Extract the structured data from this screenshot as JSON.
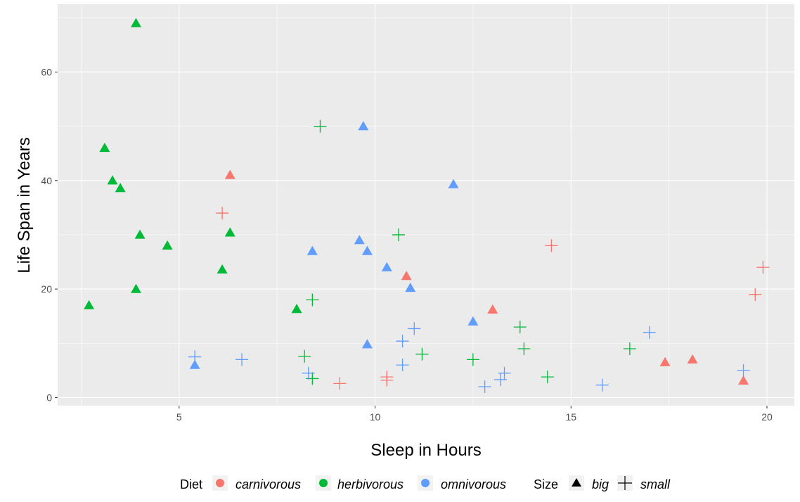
{
  "chart_data": {
    "type": "scatter",
    "title": "",
    "xlabel": "Sleep in Hours",
    "ylabel": "Life Span in Years",
    "xlim": [
      1.9,
      20.7
    ],
    "ylim": [
      -1.5,
      72.5
    ],
    "x_ticks": [
      5,
      10,
      15,
      20
    ],
    "y_ticks": [
      0,
      20,
      40,
      60
    ],
    "x_tick_labels": [
      "5",
      "10",
      "15",
      "20"
    ],
    "y_tick_labels": [
      "0",
      "20",
      "40",
      "60"
    ],
    "grid": true,
    "legend_position": "bottom",
    "colors": {
      "carnivorous": "#F8766D",
      "herbivorous": "#00BA38",
      "omnivorous": "#619CFF",
      "panel_bg": "#EBEBEB",
      "grid": "#FFFFFF"
    },
    "legend": {
      "diet_title": "Diet",
      "diet_items": [
        {
          "key": "carnivorous",
          "label": "carnivorous"
        },
        {
          "key": "herbivorous",
          "label": "herbivorous"
        },
        {
          "key": "omnivorous",
          "label": "omnivorous"
        }
      ],
      "size_title": "Size",
      "size_items": [
        {
          "key": "big",
          "label": "big"
        },
        {
          "key": "small",
          "label": "small"
        }
      ]
    },
    "points": [
      {
        "x": 3.9,
        "y": 69,
        "diet": "herbivorous",
        "size": "big"
      },
      {
        "x": 3.1,
        "y": 46,
        "diet": "herbivorous",
        "size": "big"
      },
      {
        "x": 3.3,
        "y": 40,
        "diet": "herbivorous",
        "size": "big"
      },
      {
        "x": 3.5,
        "y": 38.6,
        "diet": "herbivorous",
        "size": "big"
      },
      {
        "x": 4.0,
        "y": 30,
        "diet": "herbivorous",
        "size": "big"
      },
      {
        "x": 4.7,
        "y": 28,
        "diet": "herbivorous",
        "size": "big"
      },
      {
        "x": 3.9,
        "y": 20,
        "diet": "herbivorous",
        "size": "big"
      },
      {
        "x": 2.7,
        "y": 17,
        "diet": "herbivorous",
        "size": "big"
      },
      {
        "x": 6.1,
        "y": 23.6,
        "diet": "herbivorous",
        "size": "big"
      },
      {
        "x": 6.3,
        "y": 30.4,
        "diet": "herbivorous",
        "size": "big"
      },
      {
        "x": 8.0,
        "y": 16.3,
        "diet": "herbivorous",
        "size": "big"
      },
      {
        "x": 6.3,
        "y": 41,
        "diet": "carnivorous",
        "size": "big"
      },
      {
        "x": 10.8,
        "y": 22.4,
        "diet": "carnivorous",
        "size": "big"
      },
      {
        "x": 13.0,
        "y": 16.2,
        "diet": "carnivorous",
        "size": "big"
      },
      {
        "x": 17.4,
        "y": 6.5,
        "diet": "carnivorous",
        "size": "big"
      },
      {
        "x": 18.1,
        "y": 7.0,
        "diet": "carnivorous",
        "size": "big"
      },
      {
        "x": 19.4,
        "y": 3.1,
        "diet": "carnivorous",
        "size": "big"
      },
      {
        "x": 9.7,
        "y": 50,
        "diet": "omnivorous",
        "size": "big"
      },
      {
        "x": 12.0,
        "y": 39.3,
        "diet": "omnivorous",
        "size": "big"
      },
      {
        "x": 9.6,
        "y": 29,
        "diet": "omnivorous",
        "size": "big"
      },
      {
        "x": 8.4,
        "y": 27,
        "diet": "omnivorous",
        "size": "big"
      },
      {
        "x": 9.8,
        "y": 27,
        "diet": "omnivorous",
        "size": "big"
      },
      {
        "x": 10.3,
        "y": 24,
        "diet": "omnivorous",
        "size": "big"
      },
      {
        "x": 10.9,
        "y": 20.2,
        "diet": "omnivorous",
        "size": "big"
      },
      {
        "x": 12.5,
        "y": 14,
        "diet": "omnivorous",
        "size": "big"
      },
      {
        "x": 9.8,
        "y": 9.8,
        "diet": "omnivorous",
        "size": "big"
      },
      {
        "x": 5.4,
        "y": 6.0,
        "diet": "omnivorous",
        "size": "big"
      },
      {
        "x": 8.6,
        "y": 50,
        "diet": "herbivorous",
        "size": "small"
      },
      {
        "x": 10.6,
        "y": 30,
        "diet": "herbivorous",
        "size": "small"
      },
      {
        "x": 8.4,
        "y": 18,
        "diet": "herbivorous",
        "size": "small"
      },
      {
        "x": 13.7,
        "y": 13,
        "diet": "herbivorous",
        "size": "small"
      },
      {
        "x": 13.8,
        "y": 9,
        "diet": "herbivorous",
        "size": "small"
      },
      {
        "x": 16.5,
        "y": 9,
        "diet": "herbivorous",
        "size": "small"
      },
      {
        "x": 11.2,
        "y": 8,
        "diet": "herbivorous",
        "size": "small"
      },
      {
        "x": 8.2,
        "y": 7.6,
        "diet": "herbivorous",
        "size": "small"
      },
      {
        "x": 12.5,
        "y": 7,
        "diet": "herbivorous",
        "size": "small"
      },
      {
        "x": 8.4,
        "y": 3.5,
        "diet": "herbivorous",
        "size": "small"
      },
      {
        "x": 14.4,
        "y": 3.8,
        "diet": "herbivorous",
        "size": "small"
      },
      {
        "x": 6.1,
        "y": 34,
        "diet": "carnivorous",
        "size": "small"
      },
      {
        "x": 14.5,
        "y": 28,
        "diet": "carnivorous",
        "size": "small"
      },
      {
        "x": 19.9,
        "y": 24,
        "diet": "carnivorous",
        "size": "small"
      },
      {
        "x": 19.7,
        "y": 19,
        "diet": "carnivorous",
        "size": "small"
      },
      {
        "x": 10.3,
        "y": 3.8,
        "diet": "carnivorous",
        "size": "small"
      },
      {
        "x": 10.3,
        "y": 3.2,
        "diet": "carnivorous",
        "size": "small"
      },
      {
        "x": 9.1,
        "y": 2.6,
        "diet": "carnivorous",
        "size": "small"
      },
      {
        "x": 11.0,
        "y": 12.7,
        "diet": "omnivorous",
        "size": "small"
      },
      {
        "x": 17.0,
        "y": 12,
        "diet": "omnivorous",
        "size": "small"
      },
      {
        "x": 10.7,
        "y": 10.4,
        "diet": "omnivorous",
        "size": "small"
      },
      {
        "x": 5.4,
        "y": 7.5,
        "diet": "omnivorous",
        "size": "small"
      },
      {
        "x": 6.6,
        "y": 7,
        "diet": "omnivorous",
        "size": "small"
      },
      {
        "x": 10.7,
        "y": 6,
        "diet": "omnivorous",
        "size": "small"
      },
      {
        "x": 19.4,
        "y": 5,
        "diet": "omnivorous",
        "size": "small"
      },
      {
        "x": 8.3,
        "y": 4.5,
        "diet": "omnivorous",
        "size": "small"
      },
      {
        "x": 13.3,
        "y": 4.5,
        "diet": "omnivorous",
        "size": "small"
      },
      {
        "x": 13.2,
        "y": 3.3,
        "diet": "omnivorous",
        "size": "small"
      },
      {
        "x": 15.8,
        "y": 2.3,
        "diet": "omnivorous",
        "size": "small"
      },
      {
        "x": 12.8,
        "y": 2.0,
        "diet": "omnivorous",
        "size": "small"
      }
    ]
  }
}
